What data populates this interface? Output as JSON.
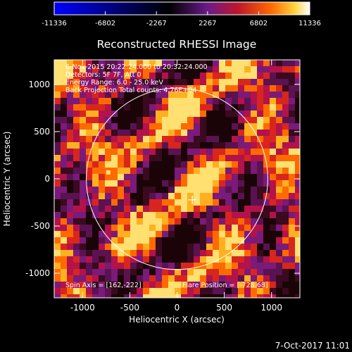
{
  "colorbar": {
    "ticks": [
      "-11336",
      "-6802",
      "-2267",
      "2267",
      "6802",
      "11336"
    ],
    "tick_values": [
      -11336,
      -6802,
      -2267,
      2267,
      6802,
      11336
    ],
    "range": [
      -11336,
      11336
    ],
    "colors": [
      "#0000ff",
      "#000000",
      "#6a1b8a",
      "#c0162c",
      "#ff6a00",
      "#ffd23c",
      "#ffffff"
    ]
  },
  "chart_data": {
    "type": "heatmap",
    "title": "Reconstructed RHESSI Image",
    "xlabel": "Heliocentric X (arcsec)",
    "ylabel": "Heliocentric Y (arcsec)",
    "xlim": [
      -1300,
      1300
    ],
    "ylim": [
      -1260,
      1260
    ],
    "xticks": [
      -1000,
      -500,
      0,
      500,
      1000
    ],
    "xtick_labels": [
      "-1000",
      "-500",
      "0",
      "500",
      "1000"
    ],
    "yticks": [
      -1000,
      -500,
      0,
      500,
      1000
    ],
    "ytick_labels": [
      "-1000",
      "-500",
      "0",
      "500",
      "1000"
    ],
    "solar_limb_radius_arcsec": 960,
    "spin_axis": [
      162,
      -222
    ],
    "flare_position": [
      -728,
      68
    ],
    "annotations": [
      "6-Nov-2015 20:22:24.000 to 20:32:24.000",
      "Detectors: 5F 7F, Att 0",
      "Energy Range: 6.0 - 25.0 keV",
      "Back Projection    Total counts: 4.76E+04"
    ],
    "footer_left": "Spin Axis = [162,-222]",
    "footer_right": "Flare Position = [-728,68]"
  },
  "timestamp": "7-Oct-2017 11:01"
}
